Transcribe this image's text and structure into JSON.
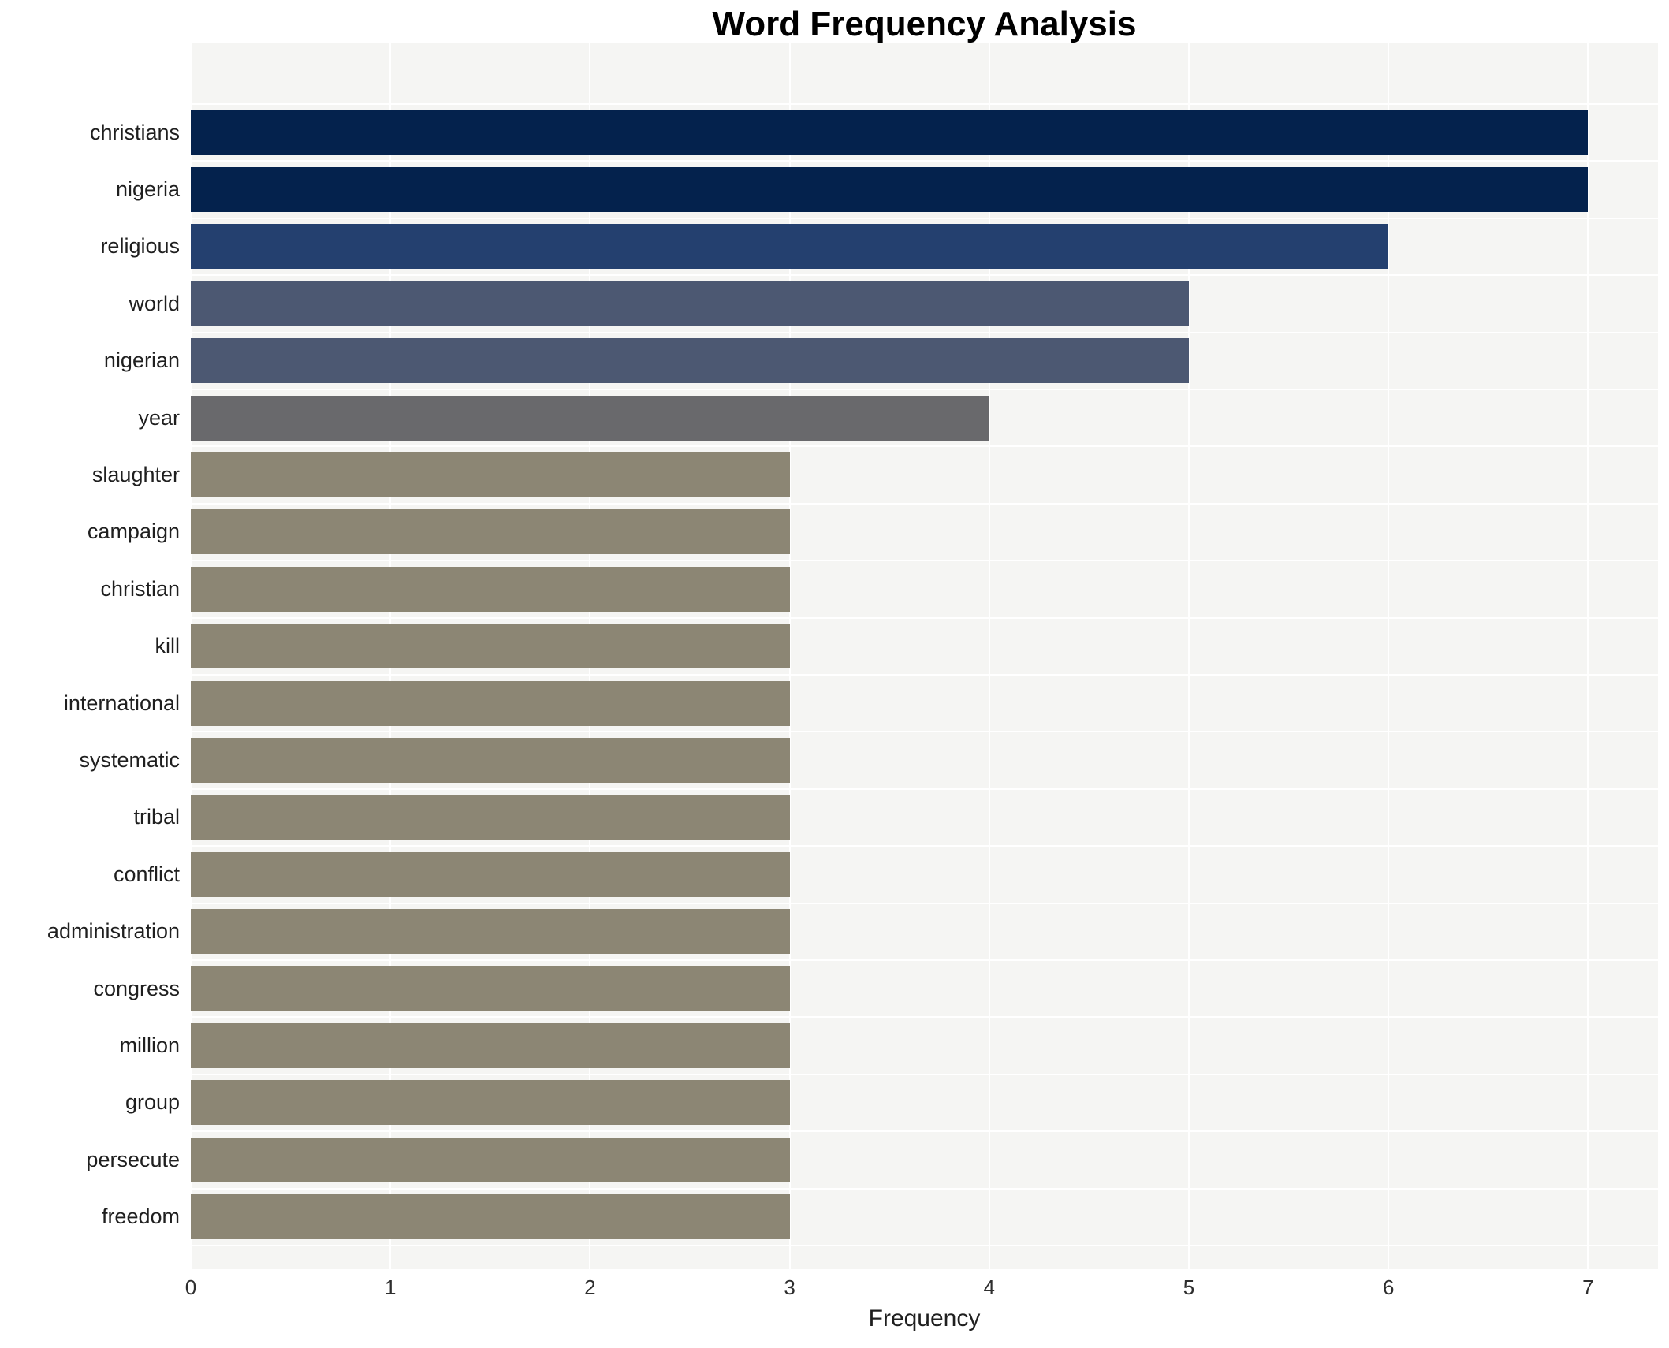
{
  "chart_data": {
    "type": "bar",
    "orientation": "horizontal",
    "title": "Word Frequency Analysis",
    "xlabel": "Frequency",
    "ylabel": "",
    "categories": [
      "christians",
      "nigeria",
      "religious",
      "world",
      "nigerian",
      "year",
      "slaughter",
      "campaign",
      "christian",
      "kill",
      "international",
      "systematic",
      "tribal",
      "conflict",
      "administration",
      "congress",
      "million",
      "group",
      "persecute",
      "freedom"
    ],
    "values": [
      7,
      7,
      6,
      5,
      5,
      4,
      3,
      3,
      3,
      3,
      3,
      3,
      3,
      3,
      3,
      3,
      3,
      3,
      3,
      3
    ],
    "xticks": [
      0,
      1,
      2,
      3,
      4,
      5,
      6,
      7
    ],
    "xlim": [
      0,
      7.35
    ],
    "grid": true,
    "legend_position": "none",
    "colors": {
      "plot_background": "#f5f5f3",
      "gridline": "#ffffff",
      "title_text": "#000000",
      "label_text": "#1f1f1f",
      "tick_text": "#2e2e2e",
      "bar_by_value": {
        "7": "#04224d",
        "6": "#24406f",
        "5": "#4c5872",
        "4": "#69696c",
        "3": "#8c8674"
      }
    }
  }
}
